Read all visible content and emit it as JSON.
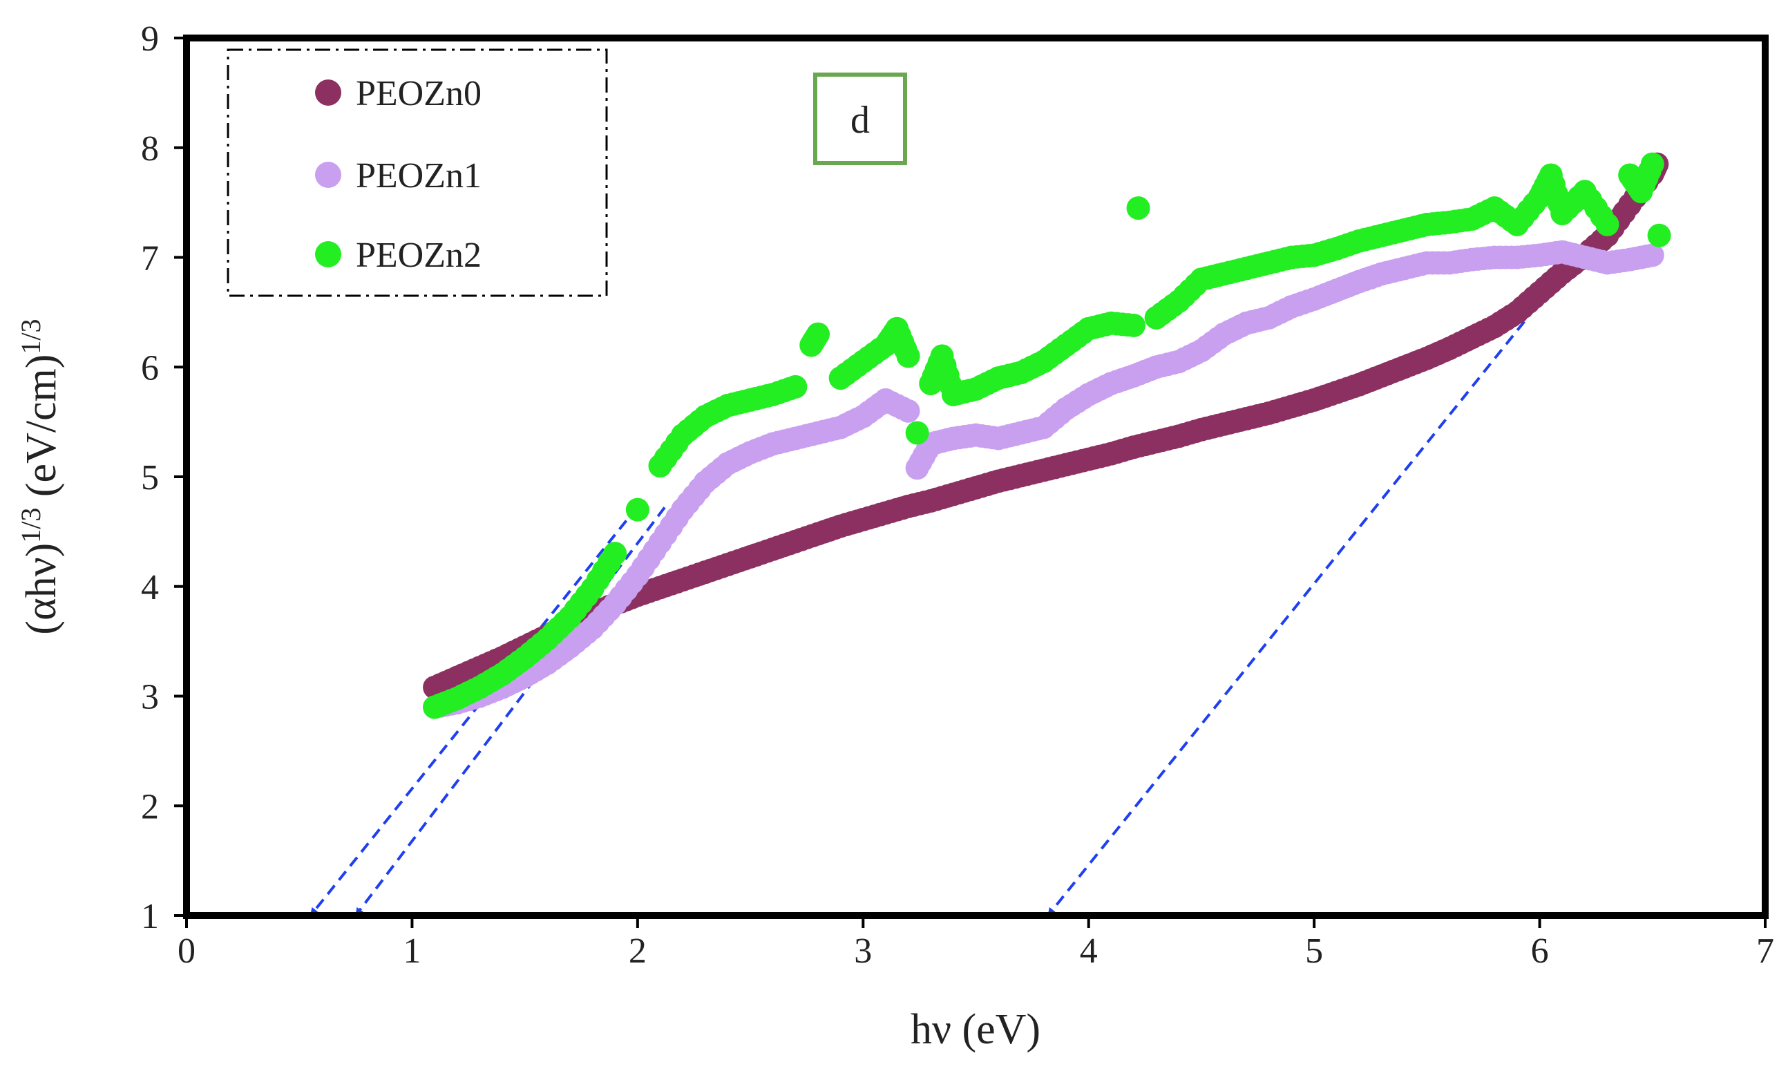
{
  "chart_data": {
    "type": "scatter",
    "xlabel": "hν (eV)",
    "ylabel": {
      "base": "(αhν)",
      "exp1": "1/3",
      "mid": " (eV/cm)",
      "exp2": "1/3"
    },
    "xlim": [
      0,
      7
    ],
    "ylim": [
      1,
      9
    ],
    "x_ticks": [
      "0",
      "1",
      "2",
      "3",
      "4",
      "5",
      "6",
      "7"
    ],
    "y_ticks": [
      "1",
      "2",
      "3",
      "4",
      "5",
      "6",
      "7",
      "8",
      "9"
    ],
    "grid": false,
    "legend_position": "top-left",
    "panel_label": "d",
    "series": [
      {
        "name": "PEOZn0",
        "color": "#8b3060",
        "points": [
          [
            1.1,
            3.08
          ],
          [
            1.2,
            3.17
          ],
          [
            1.3,
            3.26
          ],
          [
            1.4,
            3.35
          ],
          [
            1.5,
            3.45
          ],
          [
            1.6,
            3.55
          ],
          [
            1.7,
            3.65
          ],
          [
            1.8,
            3.75
          ],
          [
            1.9,
            3.84
          ],
          [
            2.0,
            3.92
          ],
          [
            2.1,
            3.99
          ],
          [
            2.2,
            4.06
          ],
          [
            2.3,
            4.13
          ],
          [
            2.4,
            4.2
          ],
          [
            2.5,
            4.27
          ],
          [
            2.6,
            4.34
          ],
          [
            2.7,
            4.41
          ],
          [
            2.8,
            4.48
          ],
          [
            2.9,
            4.55
          ],
          [
            3.0,
            4.61
          ],
          [
            3.1,
            4.67
          ],
          [
            3.2,
            4.73
          ],
          [
            3.3,
            4.78
          ],
          [
            3.4,
            4.84
          ],
          [
            3.5,
            4.9
          ],
          [
            3.6,
            4.96
          ],
          [
            3.7,
            5.01
          ],
          [
            3.8,
            5.06
          ],
          [
            3.9,
            5.11
          ],
          [
            4.0,
            5.16
          ],
          [
            4.1,
            5.21
          ],
          [
            4.2,
            5.27
          ],
          [
            4.3,
            5.32
          ],
          [
            4.4,
            5.37
          ],
          [
            4.5,
            5.43
          ],
          [
            4.6,
            5.48
          ],
          [
            4.7,
            5.53
          ],
          [
            4.8,
            5.58
          ],
          [
            4.9,
            5.64
          ],
          [
            5.0,
            5.7
          ],
          [
            5.1,
            5.77
          ],
          [
            5.2,
            5.84
          ],
          [
            5.3,
            5.92
          ],
          [
            5.4,
            6.0
          ],
          [
            5.5,
            6.08
          ],
          [
            5.6,
            6.17
          ],
          [
            5.7,
            6.27
          ],
          [
            5.8,
            6.37
          ],
          [
            5.9,
            6.5
          ],
          [
            6.0,
            6.68
          ],
          [
            6.1,
            6.86
          ],
          [
            6.2,
            7.02
          ],
          [
            6.3,
            7.2
          ],
          [
            6.4,
            7.48
          ],
          [
            6.5,
            7.76
          ],
          [
            6.52,
            7.85
          ]
        ]
      },
      {
        "name": "PEOZn1",
        "color": "#c9a0f0",
        "points": [
          [
            1.1,
            2.9
          ],
          [
            1.2,
            2.94
          ],
          [
            1.3,
            3.0
          ],
          [
            1.4,
            3.08
          ],
          [
            1.5,
            3.18
          ],
          [
            1.6,
            3.3
          ],
          [
            1.7,
            3.45
          ],
          [
            1.8,
            3.62
          ],
          [
            1.9,
            3.84
          ],
          [
            2.0,
            4.1
          ],
          [
            2.1,
            4.4
          ],
          [
            2.2,
            4.7
          ],
          [
            2.3,
            4.95
          ],
          [
            2.4,
            5.12
          ],
          [
            2.5,
            5.22
          ],
          [
            2.6,
            5.3
          ],
          [
            2.7,
            5.35
          ],
          [
            2.8,
            5.4
          ],
          [
            2.9,
            5.45
          ],
          [
            3.0,
            5.55
          ],
          [
            3.1,
            5.7
          ],
          [
            3.2,
            5.6
          ],
          [
            3.24,
            5.08
          ],
          [
            3.3,
            5.3
          ],
          [
            3.4,
            5.35
          ],
          [
            3.5,
            5.38
          ],
          [
            3.6,
            5.35
          ],
          [
            3.7,
            5.4
          ],
          [
            3.8,
            5.45
          ],
          [
            3.9,
            5.62
          ],
          [
            4.0,
            5.75
          ],
          [
            4.1,
            5.85
          ],
          [
            4.2,
            5.92
          ],
          [
            4.3,
            6.0
          ],
          [
            4.4,
            6.05
          ],
          [
            4.5,
            6.15
          ],
          [
            4.6,
            6.3
          ],
          [
            4.7,
            6.4
          ],
          [
            4.8,
            6.45
          ],
          [
            4.9,
            6.55
          ],
          [
            5.0,
            6.62
          ],
          [
            5.1,
            6.7
          ],
          [
            5.2,
            6.78
          ],
          [
            5.3,
            6.85
          ],
          [
            5.4,
            6.9
          ],
          [
            5.5,
            6.95
          ],
          [
            5.6,
            6.95
          ],
          [
            5.7,
            6.98
          ],
          [
            5.8,
            7.0
          ],
          [
            5.9,
            7.0
          ],
          [
            6.0,
            7.02
          ],
          [
            6.1,
            7.05
          ],
          [
            6.2,
            7.0
          ],
          [
            6.3,
            6.95
          ],
          [
            6.4,
            6.98
          ],
          [
            6.5,
            7.02
          ]
        ]
      },
      {
        "name": "PEOZn2",
        "color": "#22ee22",
        "points": [
          [
            1.1,
            2.9
          ],
          [
            1.2,
            2.98
          ],
          [
            1.3,
            3.08
          ],
          [
            1.4,
            3.2
          ],
          [
            1.5,
            3.35
          ],
          [
            1.6,
            3.52
          ],
          [
            1.7,
            3.72
          ],
          [
            1.8,
            3.98
          ],
          [
            1.9,
            4.3
          ],
          [
            2.0,
            4.7
          ],
          [
            2.1,
            5.1
          ],
          [
            2.2,
            5.38
          ],
          [
            2.3,
            5.55
          ],
          [
            2.4,
            5.65
          ],
          [
            2.5,
            5.7
          ],
          [
            2.6,
            5.75
          ],
          [
            2.7,
            5.82
          ],
          [
            2.77,
            6.2
          ],
          [
            2.8,
            6.3
          ],
          [
            2.9,
            5.9
          ],
          [
            3.0,
            6.05
          ],
          [
            3.1,
            6.2
          ],
          [
            3.15,
            6.35
          ],
          [
            3.2,
            6.1
          ],
          [
            3.24,
            5.4
          ],
          [
            3.3,
            5.85
          ],
          [
            3.35,
            6.1
          ],
          [
            3.4,
            5.75
          ],
          [
            3.5,
            5.8
          ],
          [
            3.6,
            5.9
          ],
          [
            3.7,
            5.95
          ],
          [
            3.8,
            6.05
          ],
          [
            3.9,
            6.2
          ],
          [
            4.0,
            6.35
          ],
          [
            4.1,
            6.4
          ],
          [
            4.2,
            6.38
          ],
          [
            4.22,
            7.45
          ],
          [
            4.3,
            6.45
          ],
          [
            4.4,
            6.6
          ],
          [
            4.5,
            6.8
          ],
          [
            4.6,
            6.85
          ],
          [
            4.7,
            6.9
          ],
          [
            4.8,
            6.95
          ],
          [
            4.9,
            7.0
          ],
          [
            5.0,
            7.02
          ],
          [
            5.1,
            7.08
          ],
          [
            5.2,
            7.15
          ],
          [
            5.3,
            7.2
          ],
          [
            5.4,
            7.25
          ],
          [
            5.5,
            7.3
          ],
          [
            5.6,
            7.32
          ],
          [
            5.7,
            7.35
          ],
          [
            5.8,
            7.45
          ],
          [
            5.9,
            7.3
          ],
          [
            6.0,
            7.55
          ],
          [
            6.05,
            7.75
          ],
          [
            6.1,
            7.4
          ],
          [
            6.2,
            7.6
          ],
          [
            6.3,
            7.3
          ],
          [
            6.4,
            7.75
          ],
          [
            6.45,
            7.6
          ],
          [
            6.5,
            7.85
          ],
          [
            6.53,
            7.2
          ]
        ]
      }
    ],
    "extrapolation_lines": [
      {
        "x": [
          1.95,
          0.55
        ],
        "y": [
          4.6,
          1.0
        ],
        "color": "#1f3ff0"
      },
      {
        "x": [
          2.12,
          0.75
        ],
        "y": [
          4.72,
          1.0
        ],
        "color": "#1f3ff0"
      },
      {
        "x": [
          6.48,
          3.82
        ],
        "y": [
          7.82,
          1.0
        ],
        "color": "#1f3ff0"
      }
    ]
  }
}
